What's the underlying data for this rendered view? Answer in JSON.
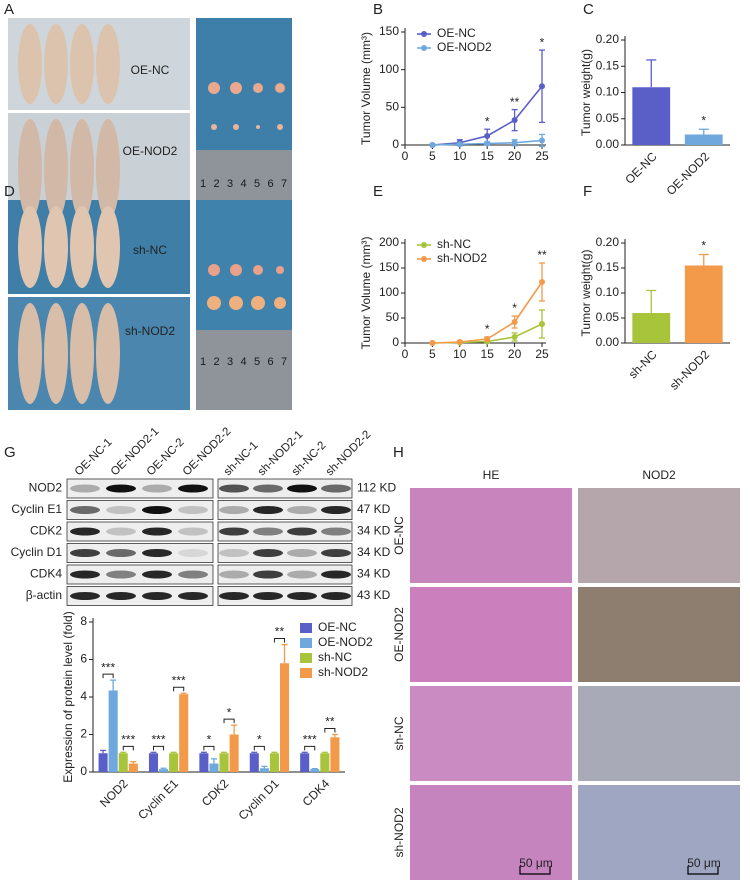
{
  "panels": [
    "A",
    "B",
    "C",
    "D",
    "E",
    "F",
    "G",
    "H"
  ],
  "panel_a": {
    "labels": [
      "OE-NC",
      "OE-NOD2"
    ],
    "ruler": [
      "1",
      "2",
      "3",
      "4",
      "5",
      "6",
      "7"
    ]
  },
  "panel_d": {
    "labels": [
      "sh-NC",
      "sh-NOD2"
    ],
    "ruler": [
      "1",
      "2",
      "3",
      "4",
      "5",
      "6",
      "7"
    ]
  },
  "blot": {
    "lanes": [
      "OE-NC-1",
      "OE-NOD2-1",
      "OE-NC-2",
      "OE-NOD2-2",
      "sh-NC-1",
      "sh-NOD2-1",
      "sh-NC-2",
      "sh-NOD2-2"
    ],
    "proteins": [
      {
        "name": "NOD2",
        "size": "112 KD"
      },
      {
        "name": "Cyclin E1",
        "size": "47 KD"
      },
      {
        "name": "CDK2",
        "size": "34 KD"
      },
      {
        "name": "Cyclin D1",
        "size": "34 KD"
      },
      {
        "name": "CDK4",
        "size": "34 KD"
      },
      {
        "name": "β-actin",
        "size": "43 KD"
      }
    ]
  },
  "panel_h": {
    "columns": [
      "HE",
      "NOD2"
    ],
    "rows": [
      "OE-NC",
      "OE-NOD2",
      "sh-NC",
      "sh-NOD2"
    ],
    "scale_bar": "50 μm"
  },
  "chart_data": [
    {
      "type": "line",
      "y_label": "Tumor Volume (mm³)",
      "x": [
        5,
        10,
        15,
        20,
        25
      ],
      "xlim": [
        0,
        25
      ],
      "xticks": [
        0,
        5,
        10,
        15,
        20,
        25
      ],
      "ylim": [
        0,
        150
      ],
      "yticks": [
        0,
        50,
        100,
        150
      ],
      "legend": "upper left",
      "series": [
        {
          "name": "OE-NC",
          "color": "#5a5fc8",
          "values": [
            0,
            3,
            12,
            33,
            78
          ],
          "errors": [
            1,
            4,
            9,
            14,
            48
          ]
        },
        {
          "name": "OE-NOD2",
          "color": "#6ea8dc",
          "values": [
            0,
            1,
            2,
            3,
            6
          ],
          "errors": [
            1,
            1,
            2,
            4,
            8
          ]
        }
      ],
      "annotations": [
        {
          "x": 15,
          "text": "*"
        },
        {
          "x": 20,
          "text": "**"
        },
        {
          "x": 25,
          "text": "*"
        }
      ]
    },
    {
      "type": "bar",
      "y_label": "Tumor weight(g)",
      "categories": [
        "OE-NC",
        "OE-NOD2"
      ],
      "values": [
        0.11,
        0.02
      ],
      "errors": [
        0.052,
        0.01
      ],
      "colors": [
        "#5a5fc8",
        "#6ea8dc"
      ],
      "ylim": [
        0,
        0.2
      ],
      "yticks": [
        {
          "value": 0,
          "label": "0.00"
        },
        {
          "value": 0.05,
          "label": "0.05"
        },
        {
          "value": 0.1,
          "label": "0.10"
        },
        {
          "value": 0.15,
          "label": "0.15"
        },
        {
          "value": 0.2,
          "label": "0.20"
        }
      ],
      "annotations": [
        {
          "category": "OE-NOD2",
          "text": "*"
        }
      ]
    },
    {
      "type": "line",
      "y_label": "Tumor Volume (mm³)",
      "x": [
        5,
        10,
        15,
        20,
        25
      ],
      "xlim": [
        0,
        25
      ],
      "xticks": [
        0,
        5,
        10,
        15,
        20,
        25
      ],
      "ylim": [
        0,
        200
      ],
      "yticks": [
        0,
        50,
        100,
        150,
        200
      ],
      "legend": "upper left",
      "series": [
        {
          "name": "sh-NC",
          "color": "#a8c43a",
          "values": [
            0,
            1,
            3,
            12,
            38
          ],
          "errors": [
            1,
            1,
            2,
            8,
            28
          ]
        },
        {
          "name": "sh-NOD2",
          "color": "#f39a4a",
          "values": [
            0,
            2,
            8,
            42,
            122
          ],
          "errors": [
            1,
            2,
            4,
            12,
            38
          ]
        }
      ],
      "annotations": [
        {
          "x": 15,
          "text": "*"
        },
        {
          "x": 20,
          "text": "*"
        },
        {
          "x": 25,
          "text": "**"
        }
      ]
    },
    {
      "type": "bar",
      "y_label": "Tumor weight(g)",
      "categories": [
        "sh-NC",
        "sh-NOD2"
      ],
      "values": [
        0.06,
        0.155
      ],
      "errors": [
        0.045,
        0.022
      ],
      "colors": [
        "#a8c43a",
        "#f39a4a"
      ],
      "ylim": [
        0,
        0.2
      ],
      "yticks": [
        {
          "value": 0,
          "label": "0.00"
        },
        {
          "value": 0.05,
          "label": "0.05"
        },
        {
          "value": 0.1,
          "label": "0.10"
        },
        {
          "value": 0.15,
          "label": "0.15"
        },
        {
          "value": 0.2,
          "label": "0.20"
        }
      ],
      "annotations": [
        {
          "category": "sh-NOD2",
          "text": "*"
        }
      ]
    },
    {
      "type": "grouped_bar",
      "y_label": "Expression of protein level (fold)",
      "categories": [
        "NOD2",
        "Cyclin E1",
        "CDK2",
        "Cyclin D1",
        "CDK4"
      ],
      "ylim": [
        0,
        8
      ],
      "yticks": [
        0,
        2,
        4,
        6,
        8
      ],
      "legend": "upper right",
      "series": [
        {
          "name": "OE-NC",
          "color": "#5a5fc8",
          "values": [
            1,
            1,
            1,
            1,
            1
          ],
          "errors": [
            0.15,
            0.05,
            0.05,
            0.05,
            0.05
          ]
        },
        {
          "name": "OE-NOD2",
          "color": "#6ea8dc",
          "values": [
            4.35,
            0.15,
            0.45,
            0.2,
            0.15
          ],
          "errors": [
            0.55,
            0.05,
            0.25,
            0.1,
            0.03
          ]
        },
        {
          "name": "sh-NC",
          "color": "#a8c43a",
          "values": [
            1,
            1,
            1,
            1,
            1
          ],
          "errors": [
            0.05,
            0.05,
            0.05,
            0.05,
            0.05
          ]
        },
        {
          "name": "sh-NOD2",
          "color": "#f39a4a",
          "values": [
            0.45,
            4.15,
            2.0,
            5.8,
            1.85
          ],
          "errors": [
            0.1,
            0.05,
            0.5,
            1.0,
            0.15
          ]
        }
      ],
      "annotations": [
        {
          "category": "NOD2",
          "pair": [
            "OE-NC",
            "OE-NOD2"
          ],
          "text": "***"
        },
        {
          "category": "NOD2",
          "pair": [
            "sh-NC",
            "sh-NOD2"
          ],
          "text": "***"
        },
        {
          "category": "Cyclin E1",
          "pair": [
            "OE-NC",
            "OE-NOD2"
          ],
          "text": "***"
        },
        {
          "category": "Cyclin E1",
          "pair": [
            "sh-NC",
            "sh-NOD2"
          ],
          "text": "***"
        },
        {
          "category": "CDK2",
          "pair": [
            "OE-NC",
            "OE-NOD2"
          ],
          "text": "*"
        },
        {
          "category": "CDK2",
          "pair": [
            "sh-NC",
            "sh-NOD2"
          ],
          "text": "*"
        },
        {
          "category": "Cyclin D1",
          "pair": [
            "OE-NC",
            "OE-NOD2"
          ],
          "text": "*"
        },
        {
          "category": "Cyclin D1",
          "pair": [
            "sh-NC",
            "sh-NOD2"
          ],
          "text": "**"
        },
        {
          "category": "CDK4",
          "pair": [
            "OE-NC",
            "OE-NOD2"
          ],
          "text": "***"
        },
        {
          "category": "CDK4",
          "pair": [
            "sh-NC",
            "sh-NOD2"
          ],
          "text": "**"
        }
      ]
    }
  ]
}
